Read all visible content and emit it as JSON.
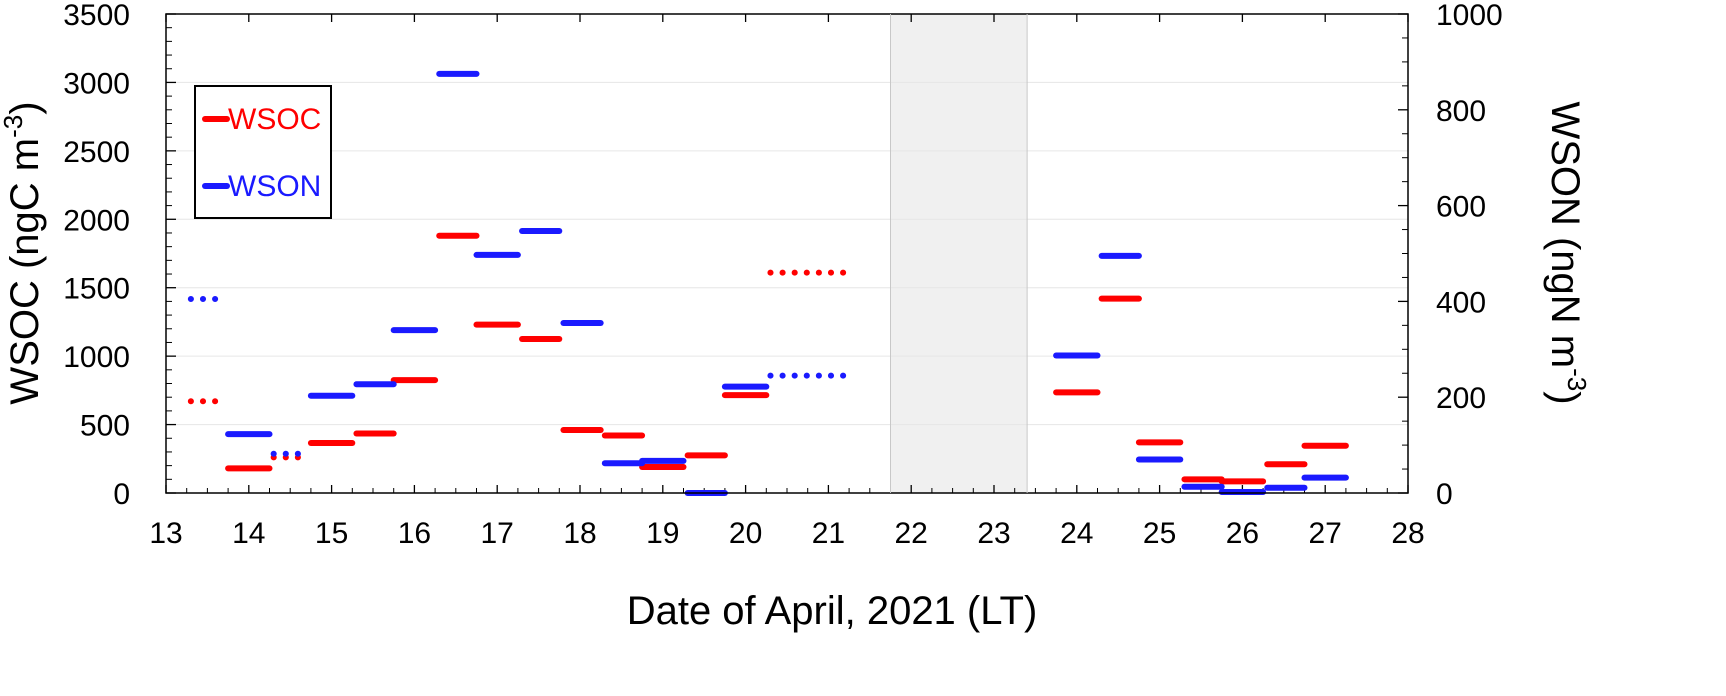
{
  "chart_data": {
    "type": "line",
    "title": "",
    "xlabel": "Date of April, 2021 (LT)",
    "ylabel_left_main": "WSOC (ngC m",
    "ylabel_left_sup": "-3",
    "ylabel_left_end": ")",
    "ylabel_right_main": "WSON (ngN m",
    "ylabel_right_sup": "-3",
    "ylabel_right_end": ")",
    "xlim": [
      13,
      28
    ],
    "xticks": [
      13,
      14,
      15,
      16,
      17,
      18,
      19,
      20,
      21,
      22,
      23,
      24,
      25,
      26,
      27,
      28
    ],
    "ylim_left": [
      0,
      3500
    ],
    "yticks_left": [
      0,
      500,
      1000,
      1500,
      2000,
      2500,
      3000,
      3500
    ],
    "ylim_right": [
      0,
      1000
    ],
    "yticks_right": [
      0,
      200,
      400,
      600,
      800,
      1000
    ],
    "grid": true,
    "legend_position": "top-left",
    "shaded_period": [
      21.75,
      23.4
    ],
    "shaded_color": "#f0f0f0",
    "series": [
      {
        "name": "WSOC",
        "axis": "left",
        "color": "#ff0000",
        "segments": [
          {
            "x0": 13.3,
            "x1": 13.7,
            "y": 670,
            "style": "dotted"
          },
          {
            "x0": 13.75,
            "x1": 14.25,
            "y": 180,
            "style": "solid"
          },
          {
            "x0": 14.3,
            "x1": 14.7,
            "y": 260,
            "style": "dotted"
          },
          {
            "x0": 14.75,
            "x1": 15.25,
            "y": 365,
            "style": "solid"
          },
          {
            "x0": 15.3,
            "x1": 15.75,
            "y": 435,
            "style": "solid"
          },
          {
            "x0": 15.75,
            "x1": 16.25,
            "y": 825,
            "style": "solid"
          },
          {
            "x0": 16.3,
            "x1": 16.75,
            "y": 1880,
            "style": "solid"
          },
          {
            "x0": 16.75,
            "x1": 17.25,
            "y": 1230,
            "style": "solid"
          },
          {
            "x0": 17.3,
            "x1": 17.75,
            "y": 1125,
            "style": "solid"
          },
          {
            "x0": 17.8,
            "x1": 18.25,
            "y": 460,
            "style": "solid"
          },
          {
            "x0": 18.3,
            "x1": 18.75,
            "y": 420,
            "style": "solid"
          },
          {
            "x0": 18.75,
            "x1": 19.25,
            "y": 190,
            "style": "solid"
          },
          {
            "x0": 19.3,
            "x1": 19.75,
            "y": 275,
            "style": "solid"
          },
          {
            "x0": 19.75,
            "x1": 20.25,
            "y": 715,
            "style": "solid"
          },
          {
            "x0": 20.3,
            "x1": 21.2,
            "y": 1610,
            "style": "dotted"
          },
          {
            "x0": 23.75,
            "x1": 24.25,
            "y": 735,
            "style": "solid"
          },
          {
            "x0": 24.3,
            "x1": 24.75,
            "y": 1420,
            "style": "solid"
          },
          {
            "x0": 24.75,
            "x1": 25.25,
            "y": 370,
            "style": "solid"
          },
          {
            "x0": 25.3,
            "x1": 25.75,
            "y": 100,
            "style": "solid"
          },
          {
            "x0": 25.75,
            "x1": 26.25,
            "y": 85,
            "style": "solid"
          },
          {
            "x0": 26.3,
            "x1": 26.75,
            "y": 210,
            "style": "solid"
          },
          {
            "x0": 26.75,
            "x1": 27.25,
            "y": 345,
            "style": "solid"
          }
        ]
      },
      {
        "name": "WSON",
        "axis": "right",
        "color": "#1a1aff",
        "segments": [
          {
            "x0": 13.3,
            "x1": 13.7,
            "y": 405,
            "style": "dotted"
          },
          {
            "x0": 13.75,
            "x1": 14.25,
            "y": 123,
            "style": "solid"
          },
          {
            "x0": 14.3,
            "x1": 14.7,
            "y": 82,
            "style": "dotted"
          },
          {
            "x0": 14.75,
            "x1": 15.25,
            "y": 203,
            "style": "solid"
          },
          {
            "x0": 15.3,
            "x1": 15.75,
            "y": 227,
            "style": "solid"
          },
          {
            "x0": 15.75,
            "x1": 16.25,
            "y": 340,
            "style": "solid"
          },
          {
            "x0": 16.3,
            "x1": 16.75,
            "y": 875,
            "style": "solid"
          },
          {
            "x0": 16.75,
            "x1": 17.25,
            "y": 497,
            "style": "solid"
          },
          {
            "x0": 17.3,
            "x1": 17.75,
            "y": 547,
            "style": "solid"
          },
          {
            "x0": 17.8,
            "x1": 18.25,
            "y": 355,
            "style": "solid"
          },
          {
            "x0": 18.3,
            "x1": 18.75,
            "y": 62,
            "style": "solid"
          },
          {
            "x0": 18.75,
            "x1": 19.25,
            "y": 67,
            "style": "solid"
          },
          {
            "x0": 19.3,
            "x1": 19.75,
            "y": 0,
            "style": "solid"
          },
          {
            "x0": 19.75,
            "x1": 20.25,
            "y": 222,
            "style": "solid"
          },
          {
            "x0": 20.3,
            "x1": 21.2,
            "y": 245,
            "style": "dotted"
          },
          {
            "x0": 23.75,
            "x1": 24.25,
            "y": 287,
            "style": "solid"
          },
          {
            "x0": 24.3,
            "x1": 24.75,
            "y": 495,
            "style": "solid"
          },
          {
            "x0": 24.75,
            "x1": 25.25,
            "y": 70,
            "style": "solid"
          },
          {
            "x0": 25.3,
            "x1": 25.75,
            "y": 13,
            "style": "solid"
          },
          {
            "x0": 25.75,
            "x1": 26.25,
            "y": 2,
            "style": "solid"
          },
          {
            "x0": 26.3,
            "x1": 26.75,
            "y": 11,
            "style": "solid"
          },
          {
            "x0": 26.75,
            "x1": 27.25,
            "y": 32,
            "style": "solid"
          }
        ]
      }
    ]
  }
}
